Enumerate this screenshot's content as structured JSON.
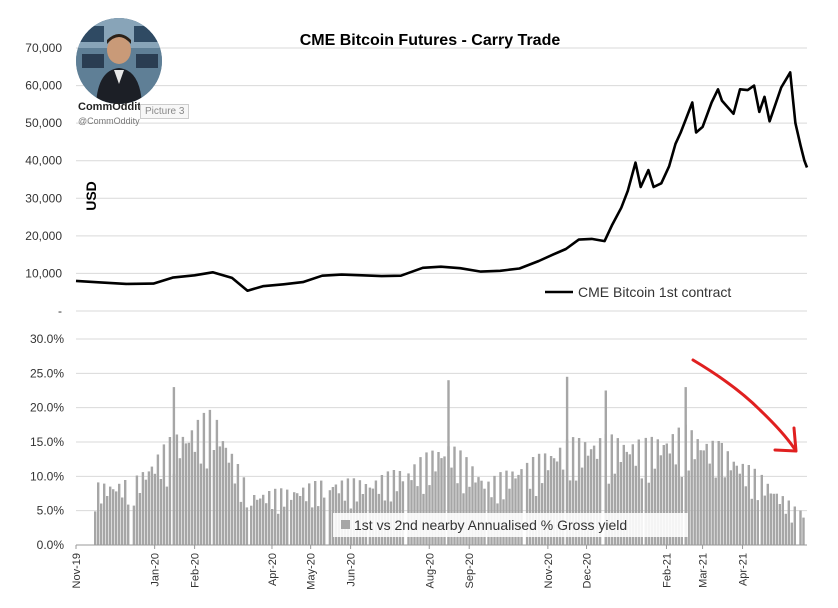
{
  "watermark": {
    "name": "CommOddity",
    "handle": "@CommOddity",
    "picture_tag": "Picture 3"
  },
  "colors": {
    "price_line": "#000000",
    "yield_bars": "#a6a6a6",
    "arrow": "#e02020",
    "grid": "#d9d9d9",
    "axis_text": "#333333"
  },
  "chart_data": [
    {
      "type": "line",
      "title": "CME Bitcoin Futures - Carry Trade",
      "ylabel": "USD",
      "xlabel": "",
      "ylim": [
        0,
        70000
      ],
      "yticks": [
        "-",
        "10,000",
        "20,000",
        "30,000",
        "40,000",
        "50,000",
        "60,000",
        "70,000"
      ],
      "grid": true,
      "legend": "bottom-right",
      "series": [
        {
          "name": "CME Bitcoin 1st contract",
          "x": [
            "2019-11-01",
            "2019-11-20",
            "2019-12-10",
            "2019-12-31",
            "2020-01-15",
            "2020-02-01",
            "2020-02-15",
            "2020-03-01",
            "2020-03-13",
            "2020-03-25",
            "2020-04-10",
            "2020-04-25",
            "2020-05-10",
            "2020-05-25",
            "2020-06-10",
            "2020-06-25",
            "2020-07-10",
            "2020-07-27",
            "2020-08-10",
            "2020-08-25",
            "2020-09-10",
            "2020-09-25",
            "2020-10-10",
            "2020-10-25",
            "2020-11-05",
            "2020-11-15",
            "2020-11-25",
            "2020-12-05",
            "2020-12-15",
            "2020-12-21",
            "2020-12-28",
            "2021-01-02",
            "2021-01-08",
            "2021-01-12",
            "2021-01-18",
            "2021-01-22",
            "2021-01-28",
            "2021-02-03",
            "2021-02-08",
            "2021-02-12",
            "2021-02-16",
            "2021-02-21",
            "2021-02-24",
            "2021-03-01",
            "2021-03-08",
            "2021-03-13",
            "2021-03-16",
            "2021-03-25",
            "2021-03-30",
            "2021-04-05",
            "2021-04-10",
            "2021-04-14",
            "2021-04-18",
            "2021-04-22",
            "2021-04-26",
            "2021-05-01",
            "2021-05-08",
            "2021-05-12",
            "2021-05-16",
            "2021-05-19",
            "2021-05-21"
          ],
          "y": [
            8000,
            7600,
            7200,
            7300,
            8900,
            9500,
            10300,
            8800,
            5400,
            6600,
            7100,
            7700,
            9400,
            9700,
            9500,
            9300,
            9400,
            11500,
            11800,
            11400,
            10500,
            10700,
            11300,
            13300,
            15000,
            16500,
            19000,
            19200,
            18600,
            23000,
            27500,
            32000,
            39500,
            33000,
            37500,
            33000,
            34000,
            38500,
            44500,
            47500,
            51000,
            55500,
            47500,
            49000,
            55500,
            59000,
            56000,
            52500,
            59000,
            58800,
            60000,
            53000,
            57000,
            50500,
            54500,
            59500,
            63500,
            50000,
            44000,
            40000,
            38200
          ]
        }
      ]
    },
    {
      "type": "bar",
      "title": "",
      "ylabel": "",
      "xlabel": "",
      "ylim": [
        0,
        30
      ],
      "yticks": [
        "0.0%",
        "5.0%",
        "10.0%",
        "15.0%",
        "20.0%",
        "25.0%",
        "30.0%"
      ],
      "grid": true,
      "legend": "bottom-center",
      "x_tick_labels": [
        "Nov-19",
        "Jan-20",
        "Feb-20",
        "Apr-20",
        "May-20",
        "Jun-20",
        "Aug-20",
        "Sep-20",
        "Nov-20",
        "Dec-20",
        "Feb-21",
        "Mar-21",
        "Apr-21"
      ],
      "annotation": "downward red arrow from Feb-21 to Apr-21",
      "series": [
        {
          "name": "1st vs 2nd nearby Annualised % Gross yield",
          "x": [
            "2019-11",
            "2019-12",
            "2020-01",
            "2020-02",
            "2020-03",
            "2020-04",
            "2020-05",
            "2020-06",
            "2020-07",
            "2020-08",
            "2020-09",
            "2020-10",
            "2020-11",
            "2020-12",
            "2021-01",
            "2021-02",
            "2021-03",
            "2021-04",
            "2021-05"
          ],
          "y": [
            7.0,
            7.5,
            12.5,
            15.5,
            6.0,
            6.5,
            7.5,
            7.5,
            9.0,
            12.0,
            7.5,
            9.5,
            12.0,
            12.5,
            12.0,
            13.5,
            11.5,
            8.0,
            4.0
          ],
          "peaks": [
            {
              "x": "2020-01",
              "y": 23.0
            },
            {
              "x": "2020-08",
              "y": 24.0
            },
            {
              "x": "2020-11",
              "y": 24.5
            },
            {
              "x": "2020-12",
              "y": 22.5
            },
            {
              "x": "2021-02",
              "y": 23.0
            }
          ]
        }
      ]
    }
  ]
}
